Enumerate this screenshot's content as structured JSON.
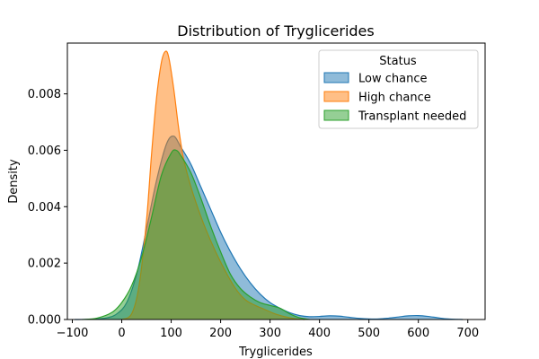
{
  "chart_data": {
    "type": "area",
    "title": "Distribution of Tryglicerides",
    "xlabel": "Tryglicerides",
    "ylabel": "Density",
    "xlim": [
      -110,
      735
    ],
    "ylim": [
      0,
      0.0098
    ],
    "x_ticks": [
      -100,
      0,
      100,
      200,
      300,
      400,
      500,
      600,
      700
    ],
    "x_tick_labels": [
      "−100",
      "0",
      "100",
      "200",
      "300",
      "400",
      "500",
      "600",
      "700"
    ],
    "y_ticks": [
      0,
      0.002,
      0.004,
      0.006,
      0.008
    ],
    "y_tick_labels": [
      "0.000",
      "0.002",
      "0.004",
      "0.006",
      "0.008"
    ],
    "grid": false,
    "legend": {
      "title": "Status",
      "position": "top-right"
    },
    "series": [
      {
        "name": "Low chance",
        "color": "#1f77b4",
        "x": [
          -95,
          -60,
          -30,
          -10,
          10,
          30,
          50,
          70,
          90,
          105,
          120,
          140,
          160,
          180,
          200,
          220,
          240,
          260,
          280,
          300,
          320,
          340,
          360,
          380,
          400,
          420,
          440,
          460,
          480,
          500,
          520,
          540,
          560,
          580,
          600,
          620,
          640,
          660,
          690
        ],
        "y": [
          0,
          1e-05,
          6e-05,
          0.0002,
          0.0006,
          0.0016,
          0.0032,
          0.0049,
          0.0062,
          0.0065,
          0.0061,
          0.0055,
          0.0047,
          0.0039,
          0.0031,
          0.0024,
          0.0018,
          0.0013,
          0.0009,
          0.0006,
          0.0004,
          0.00024,
          0.00014,
          0.0001,
          0.00011,
          0.00013,
          0.00012,
          8e-05,
          4e-05,
          2e-05,
          2e-05,
          5e-05,
          9e-05,
          0.00013,
          0.00014,
          0.00011,
          6e-05,
          2e-05,
          0
        ]
      },
      {
        "name": "High chance",
        "color": "#ff7f0e",
        "x": [
          0,
          20,
          35,
          50,
          60,
          70,
          80,
          88,
          95,
          105,
          115,
          125,
          140,
          155,
          170,
          190,
          210,
          230,
          250,
          270,
          290,
          310,
          330,
          350,
          370
        ],
        "y": [
          0,
          0.0002,
          0.0012,
          0.0035,
          0.0058,
          0.0078,
          0.0091,
          0.0095,
          0.0093,
          0.0082,
          0.0068,
          0.0057,
          0.0047,
          0.0039,
          0.0032,
          0.0024,
          0.0017,
          0.0011,
          0.0007,
          0.0005,
          0.00035,
          0.0002,
          0.0001,
          3e-05,
          0
        ]
      },
      {
        "name": "Transplant needed",
        "color": "#2ca02c",
        "x": [
          -80,
          -50,
          -20,
          0,
          20,
          40,
          60,
          80,
          100,
          110,
          120,
          140,
          160,
          180,
          200,
          220,
          240,
          260,
          280,
          300,
          320,
          340,
          360,
          380
        ],
        "y": [
          0,
          5e-05,
          0.00025,
          0.0006,
          0.0012,
          0.0022,
          0.0036,
          0.0051,
          0.0059,
          0.006,
          0.0058,
          0.0052,
          0.0043,
          0.0033,
          0.0024,
          0.0016,
          0.0011,
          0.0008,
          0.0006,
          0.0005,
          0.0004,
          0.0002,
          6e-05,
          0
        ]
      }
    ]
  }
}
